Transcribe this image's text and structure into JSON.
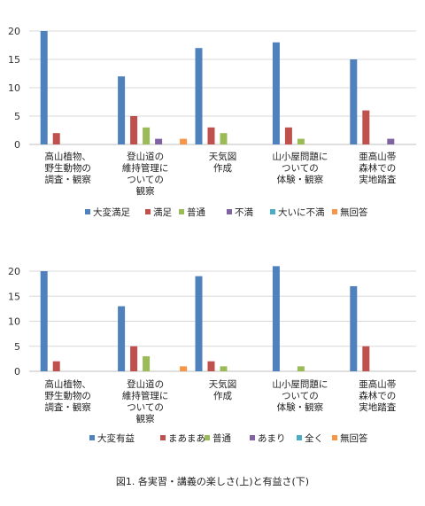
{
  "chart_data": [
    {
      "type": "bar",
      "categories": [
        "高山植物、\n野生動物の\n調査・観察",
        "登山道の\n維持管理に\nついての\n観察",
        "天気図\n作成",
        "山小屋問題に\nついての\n体験・観察",
        "亜高山帯\n森林での\n実地踏査"
      ],
      "yticks": [
        0,
        5,
        10,
        15,
        20
      ],
      "ylim": [
        0,
        20
      ],
      "grid": true,
      "legend_position": "bottom",
      "series": [
        {
          "name": "大変満足",
          "color": "#4f81bd",
          "values": [
            20,
            12,
            17,
            18,
            15
          ]
        },
        {
          "name": "満足",
          "color": "#c0504d",
          "values": [
            2,
            5,
            3,
            3,
            6
          ]
        },
        {
          "name": "普通",
          "color": "#9bbb59",
          "values": [
            0,
            3,
            2,
            1,
            0
          ]
        },
        {
          "name": "不満",
          "color": "#8064a2",
          "values": [
            0,
            1,
            0,
            0,
            1
          ]
        },
        {
          "name": "大いに不満",
          "color": "#4bacc6",
          "values": [
            0,
            0,
            0,
            0,
            0
          ]
        },
        {
          "name": "無回答",
          "color": "#f79646",
          "values": [
            0,
            1,
            0,
            0,
            0
          ]
        }
      ]
    },
    {
      "type": "bar",
      "categories": [
        "高山植物、\n野生動物の\n調査・観察",
        "登山道の\n維持管理に\nついての\n観察",
        "天気図\n作成",
        "山小屋問題に\nついての\n体験・観察",
        "亜高山帯\n森林での\n実地踏査"
      ],
      "yticks": [
        0,
        5,
        10,
        15,
        20
      ],
      "ylim": [
        0,
        22
      ],
      "grid": true,
      "legend_position": "bottom",
      "series": [
        {
          "name": "大変有益",
          "color": "#4f81bd",
          "values": [
            20,
            13,
            19,
            21,
            17
          ]
        },
        {
          "name": "まあまあ",
          "color": "#c0504d",
          "values": [
            2,
            5,
            2,
            0,
            5
          ]
        },
        {
          "name": "普通",
          "color": "#9bbb59",
          "values": [
            0,
            3,
            1,
            1,
            0
          ]
        },
        {
          "name": "あまり",
          "color": "#8064a2",
          "values": [
            0,
            0,
            0,
            0,
            0
          ]
        },
        {
          "name": "全く",
          "color": "#4bacc6",
          "values": [
            0,
            0,
            0,
            0,
            0
          ]
        },
        {
          "name": "無回答",
          "color": "#f79646",
          "values": [
            0,
            1,
            0,
            0,
            0
          ]
        }
      ]
    }
  ],
  "caption": "図1. 各実習・講義の楽しさ(上)と有益さ(下)"
}
